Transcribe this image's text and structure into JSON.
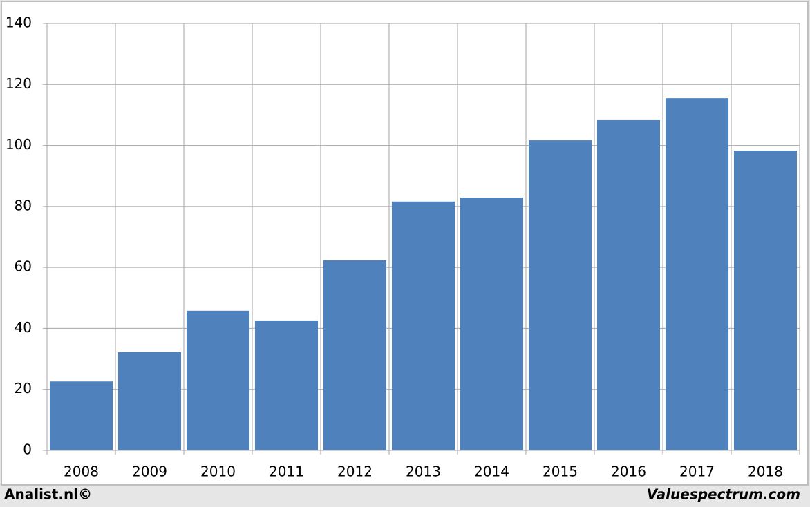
{
  "chart_data": {
    "type": "bar",
    "categories": [
      "2008",
      "2009",
      "2010",
      "2011",
      "2012",
      "2013",
      "2014",
      "2015",
      "2016",
      "2017",
      "2018"
    ],
    "values": [
      22.6,
      32.2,
      45.8,
      42.6,
      62.3,
      81.6,
      82.9,
      101.7,
      108.3,
      115.5,
      98.3
    ],
    "color": "#4f81bd",
    "ylim": [
      0,
      140
    ],
    "yticks": [
      0,
      20,
      40,
      60,
      80,
      100,
      120,
      140
    ],
    "grid": true
  },
  "footer": {
    "left": "Analist.nl©",
    "right": "Valuespectrum.com"
  }
}
